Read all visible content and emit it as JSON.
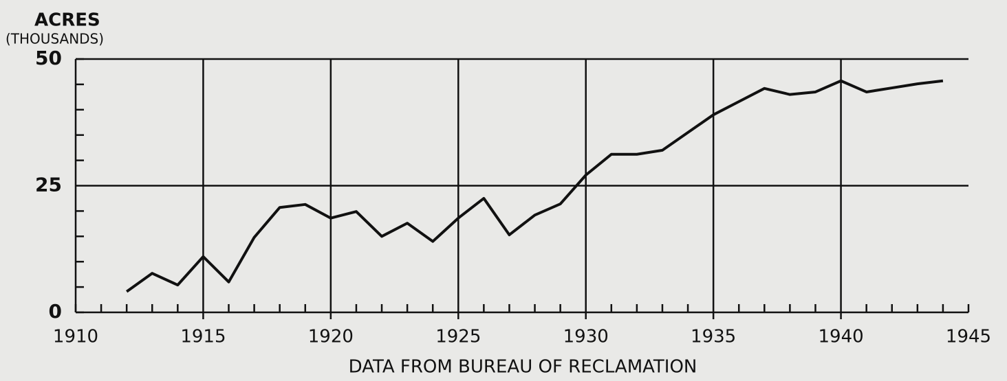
{
  "chart_data": {
    "type": "line",
    "ylabel": "ACRES",
    "ylabel_sub": "(THOUSANDS)",
    "xlabel": "DATA FROM BUREAU OF RECLAMATION",
    "x": [
      1912,
      1913,
      1914,
      1915,
      1916,
      1917,
      1918,
      1919,
      1920,
      1921,
      1922,
      1923,
      1924,
      1925,
      1926,
      1927,
      1928,
      1929,
      1930,
      1931,
      1932,
      1933,
      1934,
      1935,
      1936,
      1937,
      1938,
      1939,
      1940,
      1941,
      1942,
      1943,
      1944
    ],
    "series": [
      {
        "color": "#111111",
        "values": [
          4.1,
          7.7,
          5.4,
          11,
          6,
          14.8,
          20.7,
          21.3,
          18.6,
          19.9,
          15,
          17.6,
          14,
          18.6,
          22.5,
          15.3,
          19.2,
          21.4,
          27.1,
          31.2,
          31.2,
          32,
          35.5,
          39,
          41.6,
          44.2,
          43,
          43.5,
          45.7,
          43.5,
          44.3,
          45.1,
          45.7
        ]
      }
    ],
    "xlim": [
      1910,
      1945
    ],
    "ylim": [
      0,
      50
    ],
    "xticks": [
      1910,
      1915,
      1920,
      1925,
      1930,
      1935,
      1940,
      1945
    ],
    "yticks": [
      0,
      25,
      50
    ],
    "xminorticks": [
      1911,
      1912,
      1913,
      1914,
      1916,
      1917,
      1918,
      1919,
      1921,
      1922,
      1923,
      1924,
      1926,
      1927,
      1928,
      1929,
      1931,
      1932,
      1933,
      1934,
      1936,
      1937,
      1938,
      1939,
      1941,
      1942,
      1943,
      1944
    ],
    "yminorticks": [
      5,
      10,
      15,
      20,
      30,
      35,
      40,
      45
    ],
    "grid": true
  }
}
